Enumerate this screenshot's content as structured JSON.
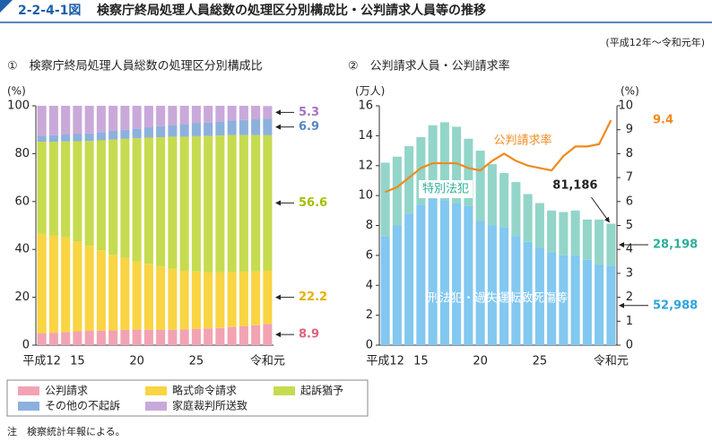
{
  "header": {
    "number": "2-2-4-1図",
    "title": "検察庁終局処理人員総数の処理区分別構成比・公判請求人員等の推移",
    "period": "(平成12年～令和元年)"
  },
  "note": "注　検察統計年報による。",
  "chart_data": [
    {
      "type": "bar",
      "stacked": true,
      "subtitle": "①　検察庁終局処理人員総数の処理区分別構成比",
      "y_unit": "(%)",
      "categories": [
        "平成12",
        null,
        null,
        "15",
        null,
        null,
        null,
        null,
        "20",
        null,
        null,
        null,
        null,
        "25",
        null,
        null,
        null,
        null,
        null,
        "令和元"
      ],
      "ylim": [
        0,
        100
      ],
      "yticks": [
        0,
        20,
        40,
        60,
        80,
        100
      ],
      "series": [
        {
          "name": "公判請求",
          "color": "#f2a3b3",
          "label_color": "#e0607e",
          "values": [
            5.0,
            5.2,
            5.5,
            5.8,
            6.0,
            6.1,
            6.2,
            6.4,
            6.5,
            6.5,
            6.4,
            6.5,
            6.6,
            6.8,
            7.0,
            7.2,
            7.6,
            7.9,
            8.3,
            8.9
          ]
        },
        {
          "name": "略式命令請求",
          "color": "#f9d443",
          "label_color": "#e2b000",
          "values": [
            41.5,
            40.5,
            39.5,
            37.5,
            35.5,
            33.5,
            31.5,
            30.0,
            28.5,
            27.5,
            26.5,
            25.5,
            24.5,
            24.0,
            23.5,
            23.2,
            23.0,
            22.8,
            22.5,
            22.2
          ]
        },
        {
          "name": "起訴猶予",
          "color": "#c6db4f",
          "label_color": "#a6bd00",
          "values": [
            38.5,
            39.3,
            40.1,
            41.9,
            43.8,
            46.0,
            48.2,
            49.8,
            51.5,
            52.7,
            54.0,
            55.1,
            56.0,
            56.5,
            56.9,
            57.2,
            57.2,
            57.1,
            57.0,
            56.6
          ]
        },
        {
          "name": "その他の不起訴",
          "color": "#8db1dd",
          "label_color": "#5a86c4",
          "values": [
            2.5,
            2.7,
            2.9,
            3.0,
            3.2,
            3.4,
            3.6,
            3.8,
            4.0,
            4.3,
            4.6,
            4.9,
            5.2,
            5.4,
            5.6,
            5.8,
            6.0,
            6.3,
            6.6,
            6.9
          ]
        },
        {
          "name": "家庭裁判所送致",
          "color": "#c9a9d9",
          "label_color": "#a673c4",
          "values": [
            12.5,
            12.3,
            12.0,
            11.8,
            11.5,
            11.0,
            10.5,
            10.0,
            9.5,
            9.0,
            8.5,
            8.0,
            7.7,
            7.3,
            7.0,
            6.6,
            6.2,
            5.9,
            5.6,
            5.3
          ]
        }
      ]
    },
    {
      "type": "bar",
      "stacked": true,
      "subtitle": "②　公判請求人員・公判請求率",
      "y_unit": "(万人)",
      "y2_unit": "(%)",
      "categories": [
        "平成12",
        null,
        null,
        "15",
        null,
        null,
        null,
        null,
        "20",
        null,
        null,
        null,
        null,
        "25",
        null,
        null,
        null,
        null,
        null,
        "令和元"
      ],
      "ylim": [
        0,
        16
      ],
      "yticks": [
        0,
        2,
        4,
        6,
        8,
        10,
        12,
        14,
        16
      ],
      "y2lim": [
        0,
        10
      ],
      "y2ticks": [
        0,
        1,
        2,
        3,
        4,
        5,
        6,
        7,
        8,
        9,
        10
      ],
      "total_label": "81,186",
      "series": [
        {
          "name": "刑法犯・過失運転致死傷等",
          "color": "#82c8f0",
          "label_color": "#2ea3dc",
          "values": [
            7.3,
            8.0,
            8.8,
            9.4,
            9.8,
            9.7,
            9.5,
            9.3,
            8.3,
            8.0,
            7.9,
            7.3,
            6.9,
            6.5,
            6.2,
            6.0,
            6.0,
            5.7,
            5.4,
            5.2988
          ],
          "value_labels": [
            null,
            null,
            null,
            null,
            null,
            null,
            null,
            null,
            null,
            null,
            null,
            null,
            null,
            null,
            null,
            null,
            null,
            null,
            null,
            "52,988"
          ]
        },
        {
          "name": "特別法犯",
          "color": "#93d5c9",
          "label_color": "#2eae9a",
          "values": [
            4.9,
            4.6,
            4.5,
            4.5,
            4.9,
            5.2,
            5.1,
            4.5,
            4.7,
            4.1,
            3.6,
            3.6,
            3.2,
            3.0,
            2.8,
            2.9,
            3.0,
            2.7,
            3.0,
            2.8198
          ],
          "value_labels": [
            null,
            null,
            null,
            null,
            null,
            null,
            null,
            null,
            null,
            null,
            null,
            null,
            null,
            null,
            null,
            null,
            null,
            null,
            null,
            "28,198"
          ]
        },
        {
          "name": "公判請求率",
          "type": "line",
          "axis": "y2",
          "color": "#ef8a1f",
          "label_color": "#ef8a1f",
          "values": [
            6.4,
            6.6,
            7.0,
            7.4,
            7.6,
            7.6,
            7.6,
            7.4,
            7.3,
            7.7,
            8.0,
            7.7,
            7.5,
            7.4,
            7.3,
            7.9,
            8.3,
            8.3,
            8.4,
            9.4
          ]
        }
      ]
    }
  ]
}
